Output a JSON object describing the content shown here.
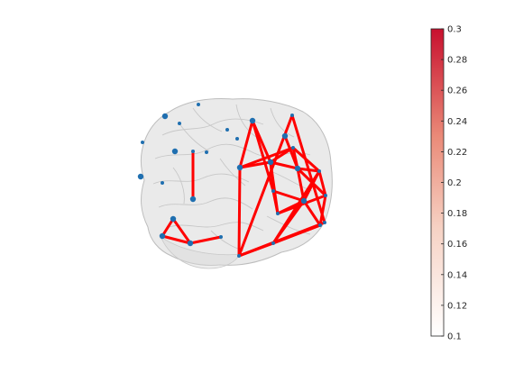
{
  "figure": {
    "brain_fill": "#d9d9d9",
    "edge_color": "#ff0000",
    "node_color": "#1f6fb0"
  },
  "network": {
    "nodes": [
      {
        "id": "n1",
        "size": "small"
      },
      {
        "id": "n2",
        "size": "medium"
      },
      {
        "id": "n3",
        "size": "small"
      },
      {
        "id": "n4",
        "size": "small"
      },
      {
        "id": "n5",
        "size": "medium"
      },
      {
        "id": "n6",
        "size": "small"
      },
      {
        "id": "n7",
        "size": "small"
      },
      {
        "id": "n8",
        "size": "small"
      },
      {
        "id": "n9",
        "size": "medium"
      },
      {
        "id": "n10",
        "size": "small"
      },
      {
        "id": "n11",
        "size": "small"
      },
      {
        "id": "n12",
        "size": "medium"
      },
      {
        "id": "n13",
        "size": "medium"
      },
      {
        "id": "n14",
        "size": "medium"
      },
      {
        "id": "n15",
        "size": "small"
      },
      {
        "id": "n16",
        "size": "medium"
      },
      {
        "id": "n17",
        "size": "medium"
      },
      {
        "id": "n18",
        "size": "medium"
      },
      {
        "id": "n19",
        "size": "small"
      },
      {
        "id": "n20",
        "size": "small"
      },
      {
        "id": "n21",
        "size": "medium"
      },
      {
        "id": "n22",
        "size": "small"
      },
      {
        "id": "n23",
        "size": "medium"
      },
      {
        "id": "n24",
        "size": "small"
      },
      {
        "id": "n25",
        "size": "small"
      },
      {
        "id": "n26",
        "size": "small"
      },
      {
        "id": "n27",
        "size": "medium"
      },
      {
        "id": "n28",
        "size": "medium"
      },
      {
        "id": "n29",
        "size": "small"
      },
      {
        "id": "n30",
        "size": "small"
      },
      {
        "id": "n31",
        "size": "small"
      },
      {
        "id": "n32",
        "size": "small"
      }
    ],
    "edges": [
      [
        "n11",
        "n16"
      ],
      [
        "n12",
        "n17"
      ],
      [
        "n17",
        "n18"
      ],
      [
        "n12",
        "n18"
      ],
      [
        "n18",
        "n19"
      ],
      [
        "n13",
        "n14"
      ],
      [
        "n13",
        "n15"
      ],
      [
        "n13",
        "n21"
      ],
      [
        "n13",
        "n22"
      ],
      [
        "n14",
        "n21"
      ],
      [
        "n14",
        "n25"
      ],
      [
        "n21",
        "n25"
      ],
      [
        "n21",
        "n26"
      ],
      [
        "n21",
        "n27"
      ],
      [
        "n21",
        "n22"
      ],
      [
        "n22",
        "n27"
      ],
      [
        "n22",
        "n24"
      ],
      [
        "n25",
        "n26"
      ],
      [
        "n25",
        "n28"
      ],
      [
        "n26",
        "n29"
      ],
      [
        "n26",
        "n28"
      ],
      [
        "n27",
        "n29"
      ],
      [
        "n27",
        "n28"
      ],
      [
        "n27",
        "n24"
      ],
      [
        "n27",
        "n23"
      ],
      [
        "n24",
        "n28"
      ],
      [
        "n24",
        "n29"
      ],
      [
        "n24",
        "n30"
      ],
      [
        "n28",
        "n30"
      ],
      [
        "n28",
        "n31"
      ],
      [
        "n29",
        "n31"
      ],
      [
        "n30",
        "n31"
      ],
      [
        "n15",
        "n30"
      ],
      [
        "n15",
        "n31"
      ],
      [
        "n15",
        "n32"
      ],
      [
        "n32",
        "n20"
      ],
      [
        "n15",
        "n20"
      ]
    ]
  },
  "colorbar": {
    "min": 0.1,
    "max": 0.3,
    "low_color": "#ffffff",
    "high_color": "#c8102e",
    "ticks": [
      "0.1",
      "0.12",
      "0.14",
      "0.16",
      "0.18",
      "0.2",
      "0.22",
      "0.24",
      "0.26",
      "0.28",
      "0.3"
    ]
  }
}
